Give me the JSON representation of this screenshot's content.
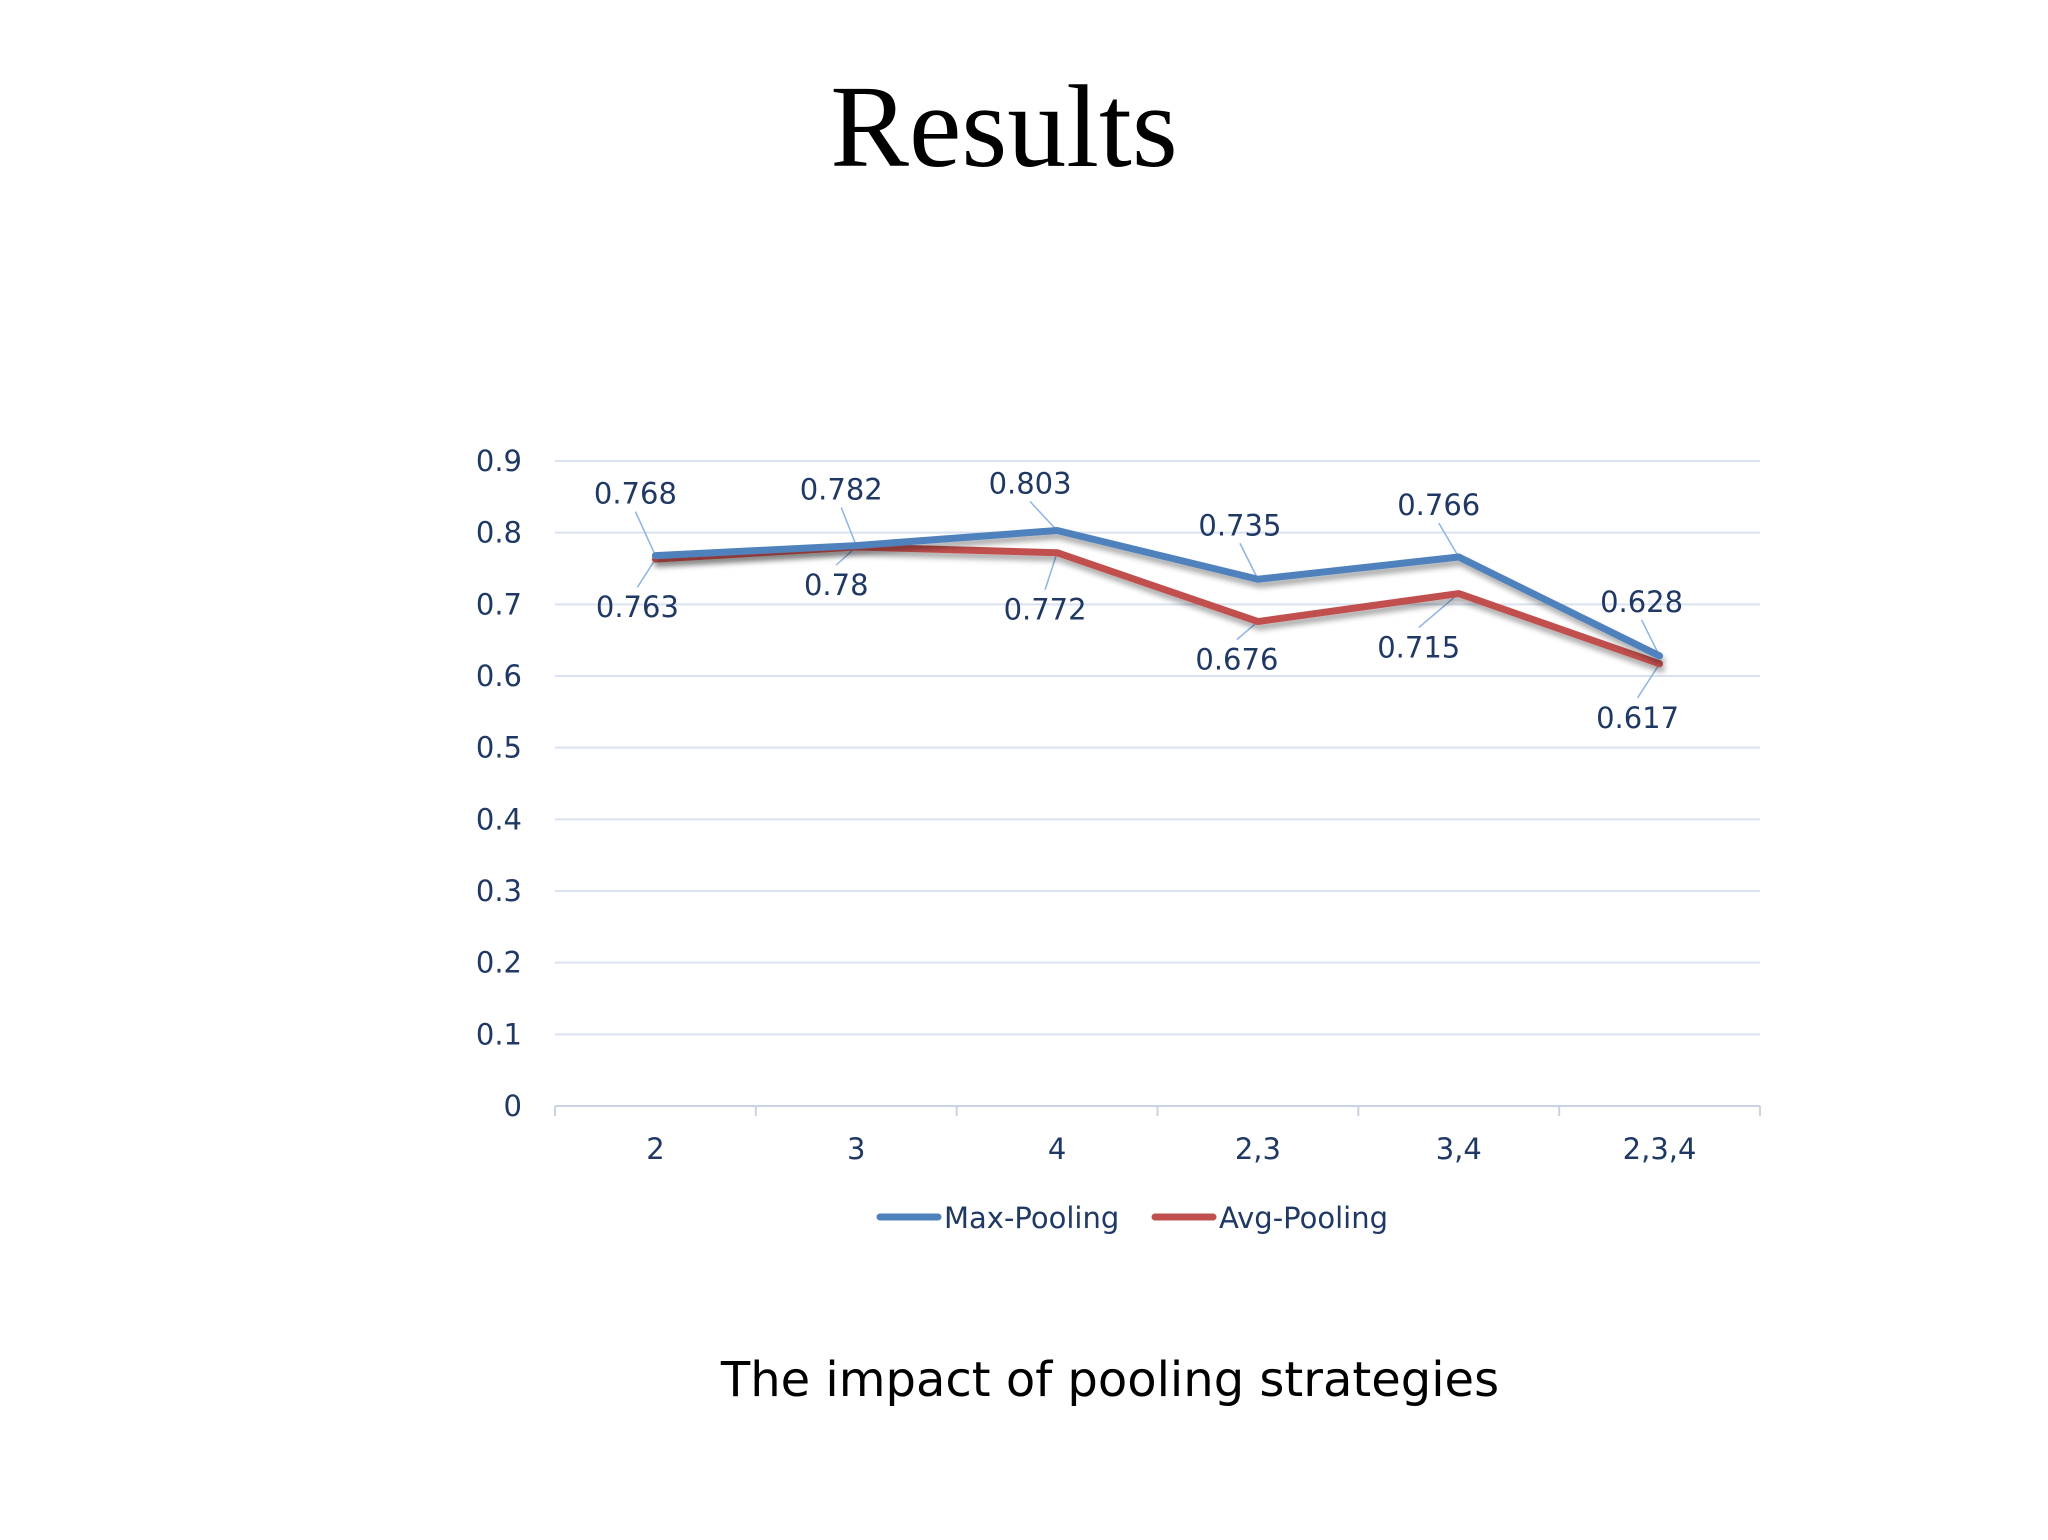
{
  "slide": {
    "title": "Results",
    "caption": "The impact of pooling strategies"
  },
  "chart_data": {
    "type": "line",
    "title": "",
    "xlabel": "",
    "ylabel": "",
    "categories": [
      "2",
      "3",
      "4",
      "2,3",
      "3,4",
      "2,3,4"
    ],
    "ylim": [
      0,
      0.9
    ],
    "yticks": [
      "0",
      "0.1",
      "0.2",
      "0.3",
      "0.4",
      "0.5",
      "0.6",
      "0.7",
      "0.8",
      "0.9"
    ],
    "grid": true,
    "legend_position": "bottom",
    "series": [
      {
        "name": "Max-Pooling",
        "color": "#4f81bd",
        "values": [
          0.768,
          0.782,
          0.803,
          0.735,
          0.766,
          0.628
        ],
        "labels": [
          "0.768",
          "0.782",
          "0.803",
          "0.735",
          "0.766",
          "0.628"
        ]
      },
      {
        "name": "Avg-Pooling",
        "color": "#c0504d",
        "values": [
          0.763,
          0.78,
          0.772,
          0.676,
          0.715,
          0.617
        ],
        "labels": [
          "0.763",
          "0.78",
          "0.772",
          "0.676",
          "0.715",
          "0.617"
        ]
      }
    ]
  }
}
